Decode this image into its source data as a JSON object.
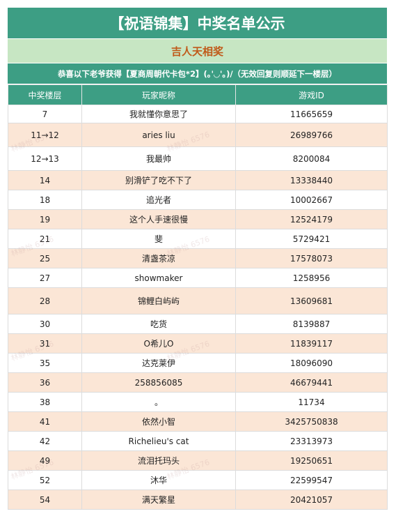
{
  "title": "【祝语锦集】中奖名单公示",
  "subtitle": "吉人天相奖",
  "notice": "恭喜以下老爷获得【夏商周朝代卡包*2】(｡'◡'｡)/（无效回复则顺延下一楼层）",
  "watermark": "林静怡 6576",
  "columns": [
    "中奖楼层",
    "玩家昵称",
    "游戏ID"
  ],
  "rows": [
    {
      "floor": "7",
      "name": "我就懂你意思了",
      "id": "11665659"
    },
    {
      "floor": "11→12",
      "name": "aries liu",
      "id": "26989766"
    },
    {
      "floor": "12→13",
      "name": "我最帅",
      "id": "8200084"
    },
    {
      "floor": "14",
      "name": "别滑铲了吃不下了",
      "id": "13338440"
    },
    {
      "floor": "18",
      "name": "追光者",
      "id": "10002667"
    },
    {
      "floor": "19",
      "name": "这个人手速很慢",
      "id": "12524179"
    },
    {
      "floor": "21",
      "name": "斐",
      "id": "5729421"
    },
    {
      "floor": "25",
      "name": "清盏茶凉",
      "id": "17578073"
    },
    {
      "floor": "27",
      "name": "showmaker",
      "id": "1258956"
    },
    {
      "floor": "28",
      "name": "锦鲤白屿屿",
      "id": "13609681"
    },
    {
      "floor": "30",
      "name": "吃货",
      "id": "8139887"
    },
    {
      "floor": "31",
      "name": "O希儿O",
      "id": "11839117"
    },
    {
      "floor": "35",
      "name": "达克莱伊",
      "id": "18096090"
    },
    {
      "floor": "36",
      "name": "258856085",
      "id": "46679441"
    },
    {
      "floor": "38",
      "name": "。",
      "id": "11734"
    },
    {
      "floor": "41",
      "name": "依然小智",
      "id": "3425750838"
    },
    {
      "floor": "42",
      "name": "Richelieu's cat",
      "id": "23313973"
    },
    {
      "floor": "49",
      "name": "流泪托玛头",
      "id": "19250651"
    },
    {
      "floor": "52",
      "name": "沐华",
      "id": "22599547"
    },
    {
      "floor": "54",
      "name": "满天繁星",
      "id": "20421057"
    }
  ]
}
